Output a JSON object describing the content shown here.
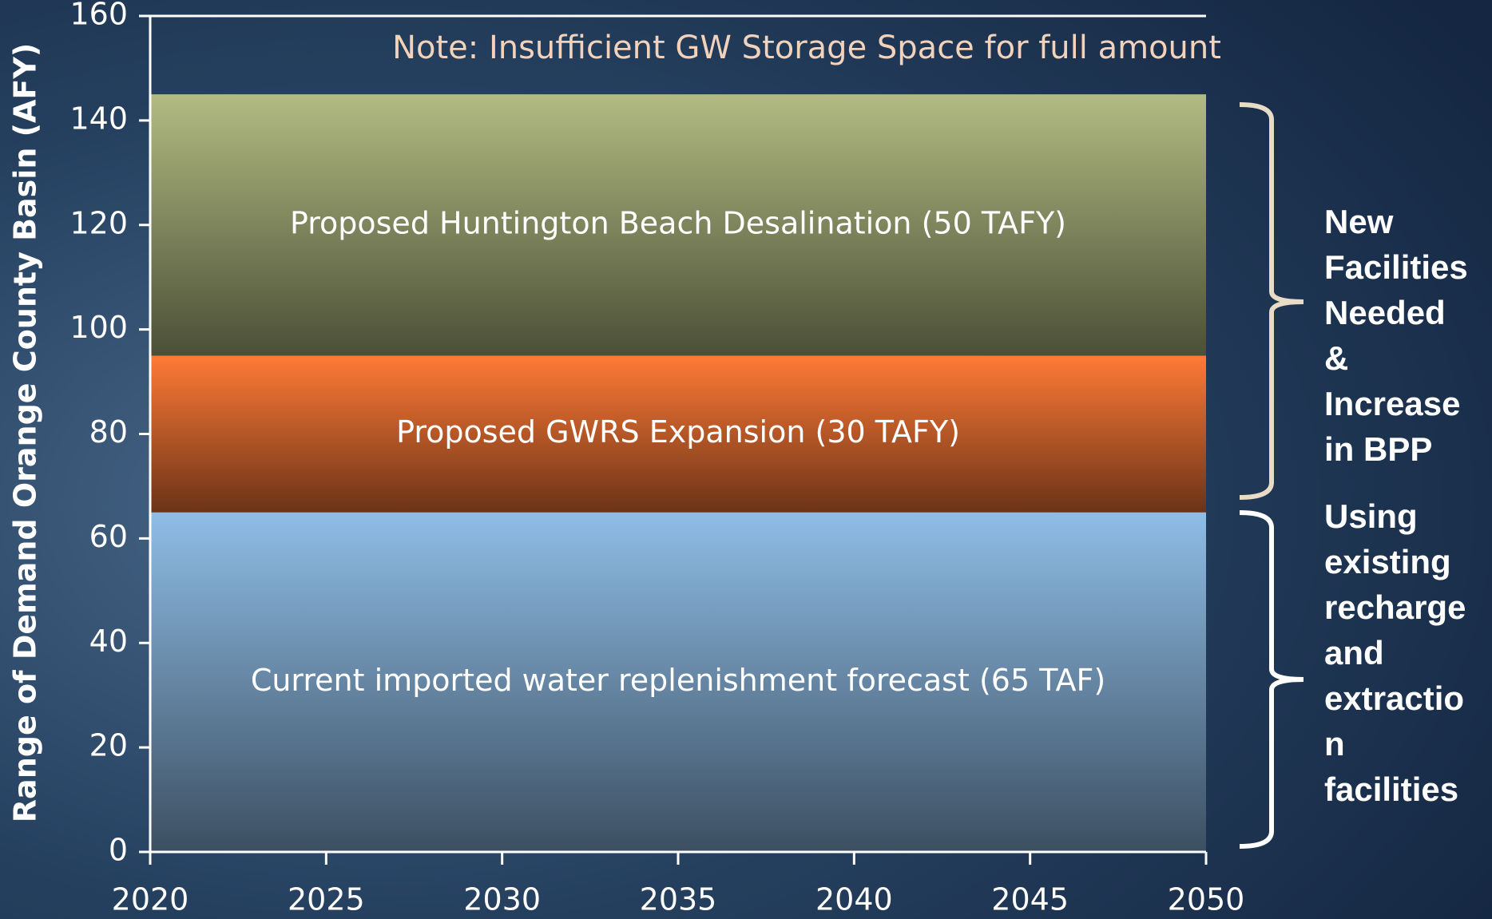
{
  "chart_data": {
    "type": "area",
    "stacked": true,
    "y_label": "Range of Demand Orange County  Basin (AFY)",
    "x": [
      2020,
      2050
    ],
    "xlim": [
      2020,
      2050
    ],
    "xticks": [
      2020,
      2025,
      2030,
      2035,
      2040,
      2045,
      2050
    ],
    "ylim": [
      0,
      160
    ],
    "yticks": [
      0,
      20,
      40,
      60,
      80,
      100,
      120,
      140,
      160
    ],
    "series": [
      {
        "name": "Current imported water replenishment forecast (65 TAF)",
        "color": "#8fbde6",
        "values": [
          65,
          65
        ]
      },
      {
        "name": "Proposed GWRS Expansion (30 TAFY)",
        "color": "#ff7a36",
        "values": [
          30,
          30
        ]
      },
      {
        "name": "Proposed Huntington Beach Desalination (50 TAFY)",
        "color": "#b2bb82",
        "values": [
          50,
          50
        ]
      }
    ],
    "annotations": {
      "note": "Note:  Insufficient GW Storage Space for full amount",
      "upper_brace": [
        "New",
        "Facilities",
        "Needed",
        "&",
        "Increase",
        "in BPP"
      ],
      "lower_brace": [
        "Using",
        "existing",
        "recharge",
        "and",
        "extractio",
        "n",
        "facilities"
      ]
    }
  }
}
